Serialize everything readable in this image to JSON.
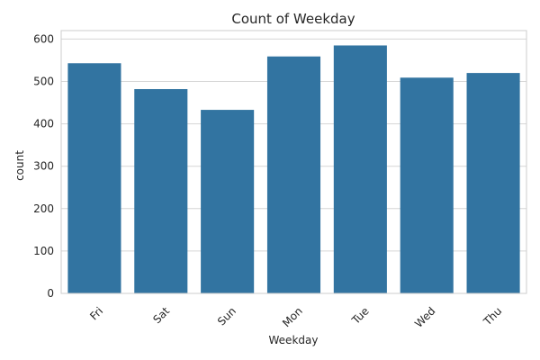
{
  "chart_data": {
    "type": "bar",
    "title": "Count of Weekday",
    "xlabel": "Weekday",
    "ylabel": "count",
    "categories": [
      "Fri",
      "Sat",
      "Sun",
      "Mon",
      "Tue",
      "Wed",
      "Thu"
    ],
    "values": [
      543,
      482,
      433,
      559,
      585,
      509,
      520
    ],
    "ylim": [
      0,
      620
    ],
    "yticks": [
      0,
      100,
      200,
      300,
      400,
      500,
      600
    ],
    "grid": true,
    "bar_color": "#3274a1",
    "tick_rotation_deg": -45
  }
}
